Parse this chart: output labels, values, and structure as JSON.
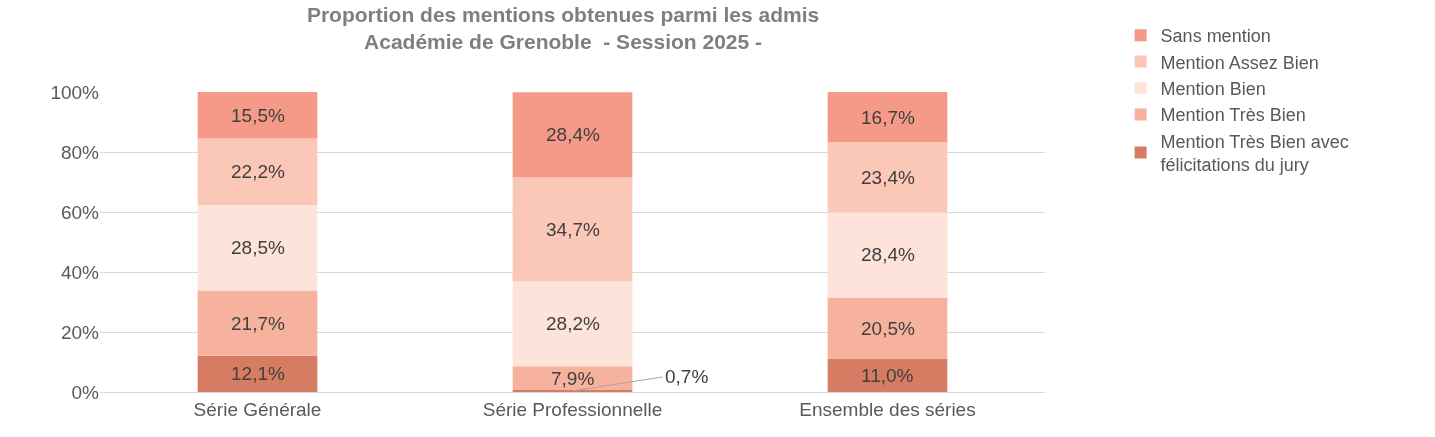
{
  "chart_data": {
    "type": "bar",
    "stacked": true,
    "title": "Proportion des mentions obtenues parmi les admis\nAcadémie de Grenoble  - Session 2025 -",
    "categories": [
      "Série Générale",
      "Série Professionnelle",
      "Ensemble des séries"
    ],
    "series": [
      {
        "name": "Mention Très Bien avec félicitations du jury",
        "color": "#d57c62",
        "values": [
          12.1,
          0.7,
          11.0
        ],
        "value_labels": [
          "12,1%",
          "0,7%",
          "11,0%"
        ]
      },
      {
        "name": "Mention Très Bien",
        "color": "#f7b29e",
        "values": [
          21.7,
          7.9,
          20.5
        ],
        "value_labels": [
          "21,7%",
          "7,9%",
          "20,5%"
        ]
      },
      {
        "name": "Mention Bien",
        "color": "#fde3da",
        "values": [
          28.5,
          28.2,
          28.4
        ],
        "value_labels": [
          "28,5%",
          "28,2%",
          "28,4%"
        ]
      },
      {
        "name": "Mention Assez Bien",
        "color": "#fbc7b7",
        "values": [
          22.2,
          34.7,
          23.4
        ],
        "value_labels": [
          "22,2%",
          "34,7%",
          "23,4%"
        ]
      },
      {
        "name": "Sans mention",
        "color": "#f59a88",
        "values": [
          15.5,
          28.4,
          16.7
        ],
        "value_labels": [
          "15,5%",
          "28,4%",
          "16,7%"
        ]
      }
    ],
    "ylim": [
      0,
      100
    ],
    "yticks": [
      {
        "value": 0,
        "label": "0%"
      },
      {
        "value": 20,
        "label": "20%"
      },
      {
        "value": 40,
        "label": "40%"
      },
      {
        "value": 60,
        "label": "60%"
      },
      {
        "value": 80,
        "label": "80%"
      },
      {
        "value": 100,
        "label": "100%"
      }
    ],
    "grid": "y",
    "legend": "right"
  }
}
